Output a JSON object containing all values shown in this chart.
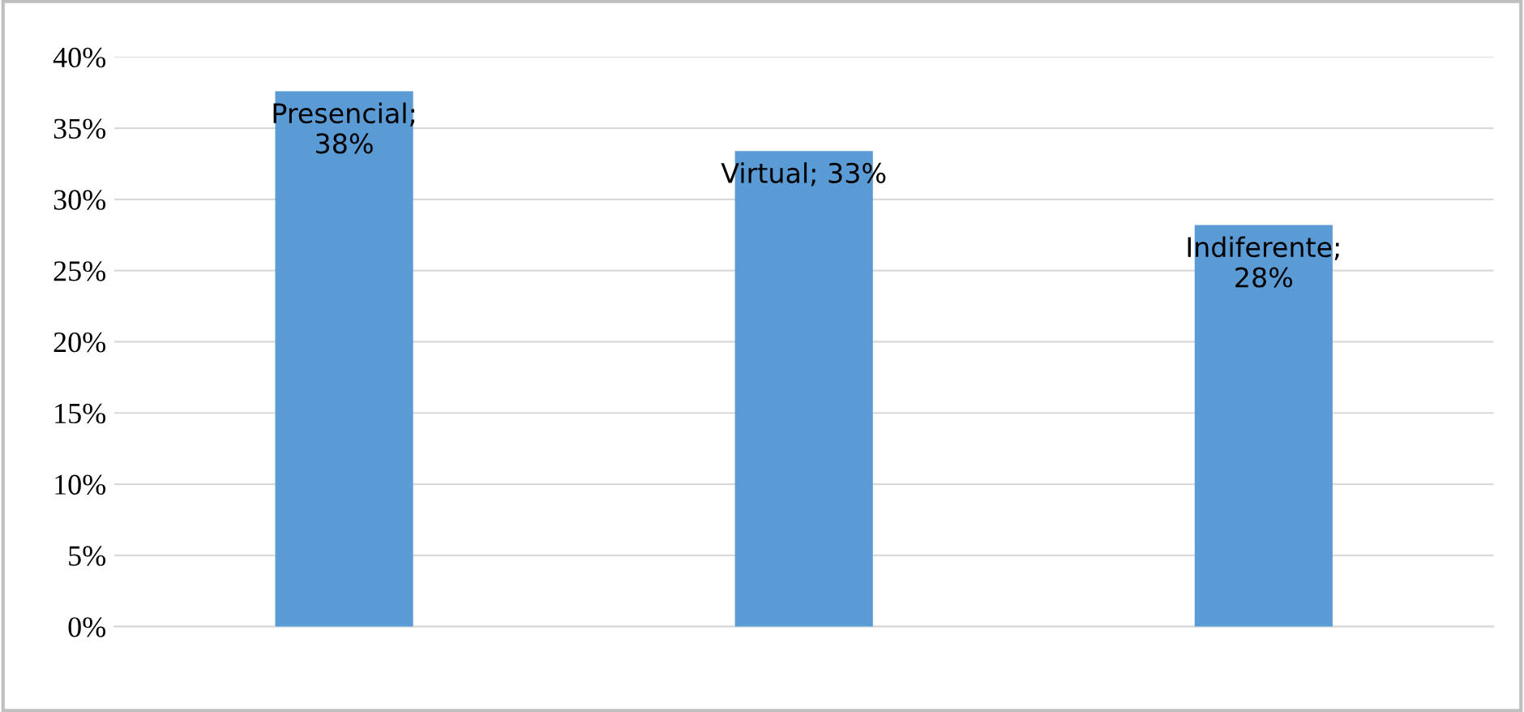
{
  "chart_data": {
    "type": "bar",
    "categories": [
      null,
      null,
      null
    ],
    "values": [
      37.6,
      33.4,
      28.2
    ],
    "color": "#5b9bd5",
    "value_labels": [
      "Presencial;\n38%",
      "Virtual; 33%",
      "Indiferente;\n28%"
    ],
    "ylim": [
      0,
      40
    ],
    "yticks": [
      {
        "value": 0,
        "label": "0%"
      },
      {
        "value": 5,
        "label": "5%"
      },
      {
        "value": 10,
        "label": "10%"
      },
      {
        "value": 15,
        "label": "15%"
      },
      {
        "value": 20,
        "label": "20%"
      },
      {
        "value": 25,
        "label": "25%"
      },
      {
        "value": 30,
        "label": "30%"
      },
      {
        "value": 35,
        "label": "35%"
      },
      {
        "value": 40,
        "label": "40%"
      }
    ],
    "grid": "y",
    "legend": false
  }
}
